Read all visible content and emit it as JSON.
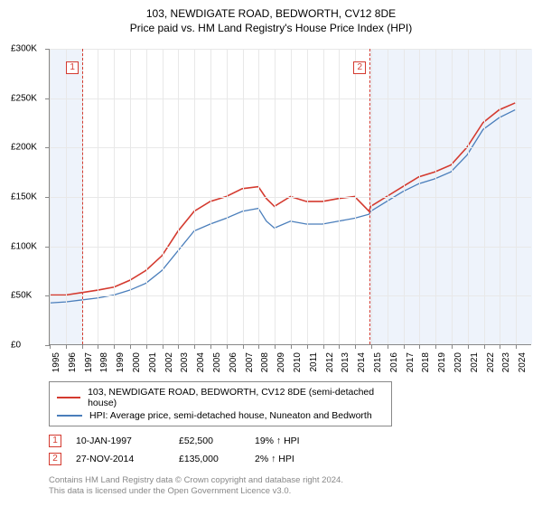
{
  "title": "103, NEWDIGATE ROAD, BEDWORTH, CV12 8DE",
  "subtitle": "Price paid vs. HM Land Registry's House Price Index (HPI)",
  "title_fontsize": 12,
  "chart": {
    "type": "line",
    "background_color": "#ffffff",
    "grid_color": "#e8e8e8",
    "axis_color": "#888888",
    "label_fontsize": 10,
    "xlim": [
      1995,
      2025
    ],
    "ylim": [
      0,
      300000
    ],
    "ytick_step": 50000,
    "yticks": [
      {
        "v": 0,
        "label": "£0"
      },
      {
        "v": 50000,
        "label": "£50K"
      },
      {
        "v": 100000,
        "label": "£100K"
      },
      {
        "v": 150000,
        "label": "£150K"
      },
      {
        "v": 200000,
        "label": "£200K"
      },
      {
        "v": 250000,
        "label": "£250K"
      },
      {
        "v": 300000,
        "label": "£300K"
      }
    ],
    "xticks": [
      1995,
      1996,
      1997,
      1998,
      1999,
      2000,
      2001,
      2002,
      2003,
      2004,
      2005,
      2006,
      2007,
      2008,
      2009,
      2010,
      2011,
      2012,
      2013,
      2014,
      2015,
      2016,
      2017,
      2018,
      2019,
      2020,
      2021,
      2022,
      2023,
      2024
    ],
    "shaded_regions": [
      {
        "from": 1995,
        "to": 1997.03,
        "color": "#eef3fb"
      },
      {
        "from": 2014.9,
        "to": 2025,
        "color": "#eef3fb"
      }
    ],
    "markers": [
      {
        "id": "1",
        "x": 1997.03,
        "color": "#d43a2f"
      },
      {
        "id": "2",
        "x": 2014.9,
        "color": "#d43a2f"
      }
    ],
    "series": [
      {
        "name": "property",
        "label": "103, NEWDIGATE ROAD, BEDWORTH, CV12 8DE (semi-detached house)",
        "color": "#d43a2f",
        "line_width": 1.6,
        "data": [
          [
            1995,
            50000
          ],
          [
            1996,
            50000
          ],
          [
            1997,
            52500
          ],
          [
            1998,
            55000
          ],
          [
            1999,
            58000
          ],
          [
            2000,
            65000
          ],
          [
            2001,
            75000
          ],
          [
            2002,
            90000
          ],
          [
            2003,
            115000
          ],
          [
            2004,
            135000
          ],
          [
            2005,
            145000
          ],
          [
            2006,
            150000
          ],
          [
            2007,
            158000
          ],
          [
            2008,
            160000
          ],
          [
            2008.5,
            148000
          ],
          [
            2009,
            140000
          ],
          [
            2010,
            150000
          ],
          [
            2011,
            145000
          ],
          [
            2012,
            145000
          ],
          [
            2013,
            148000
          ],
          [
            2014,
            150000
          ],
          [
            2014.9,
            135000
          ],
          [
            2015,
            140000
          ],
          [
            2016,
            150000
          ],
          [
            2017,
            160000
          ],
          [
            2018,
            170000
          ],
          [
            2019,
            175000
          ],
          [
            2020,
            182000
          ],
          [
            2021,
            200000
          ],
          [
            2022,
            225000
          ],
          [
            2023,
            238000
          ],
          [
            2024,
            245000
          ]
        ]
      },
      {
        "name": "hpi",
        "label": "HPI: Average price, semi-detached house, Nuneaton and Bedworth",
        "color": "#4a7ebb",
        "line_width": 1.3,
        "data": [
          [
            1995,
            42000
          ],
          [
            1996,
            43000
          ],
          [
            1997,
            45000
          ],
          [
            1998,
            47000
          ],
          [
            1999,
            50000
          ],
          [
            2000,
            55000
          ],
          [
            2001,
            62000
          ],
          [
            2002,
            75000
          ],
          [
            2003,
            95000
          ],
          [
            2004,
            115000
          ],
          [
            2005,
            122000
          ],
          [
            2006,
            128000
          ],
          [
            2007,
            135000
          ],
          [
            2008,
            138000
          ],
          [
            2008.5,
            125000
          ],
          [
            2009,
            118000
          ],
          [
            2010,
            125000
          ],
          [
            2011,
            122000
          ],
          [
            2012,
            122000
          ],
          [
            2013,
            125000
          ],
          [
            2014,
            128000
          ],
          [
            2014.9,
            132000
          ],
          [
            2015,
            135000
          ],
          [
            2016,
            145000
          ],
          [
            2017,
            155000
          ],
          [
            2018,
            163000
          ],
          [
            2019,
            168000
          ],
          [
            2020,
            175000
          ],
          [
            2021,
            192000
          ],
          [
            2022,
            218000
          ],
          [
            2023,
            230000
          ],
          [
            2024,
            238000
          ]
        ]
      }
    ]
  },
  "legend": {
    "items": [
      {
        "label": "103, NEWDIGATE ROAD, BEDWORTH, CV12 8DE (semi-detached house)",
        "color": "#d43a2f"
      },
      {
        "label": "HPI: Average price, semi-detached house, Nuneaton and Bedworth",
        "color": "#4a7ebb"
      }
    ]
  },
  "sales": [
    {
      "id": "1",
      "date": "10-JAN-1997",
      "price": "£52,500",
      "diff": "19% ↑ HPI",
      "color": "#d43a2f"
    },
    {
      "id": "2",
      "date": "27-NOV-2014",
      "price": "£135,000",
      "diff": "2% ↑ HPI",
      "color": "#d43a2f"
    }
  ],
  "attribution": {
    "line1": "Contains HM Land Registry data © Crown copyright and database right 2024.",
    "line2": "This data is licensed under the Open Government Licence v3.0."
  }
}
